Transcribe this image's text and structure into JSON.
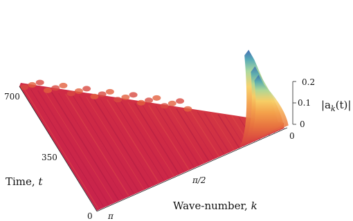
{
  "chart_data": {
    "type": "surface",
    "title": "",
    "xlabel": "Wave-number, ",
    "xlabel_symbol": "k",
    "ylabel": "Time, ",
    "ylabel_symbol": "t",
    "zlabel_prefix": "|a",
    "zlabel_sub": "k",
    "zlabel_suffix": "(t)|",
    "x_ticks": [
      "π",
      "π/2",
      "0"
    ],
    "y_ticks": [
      "0",
      "350",
      "700"
    ],
    "z_ticks": [
      "0",
      "0.1",
      "0.2"
    ],
    "xlim": [
      0,
      3.14159
    ],
    "ylim": [
      0,
      700
    ],
    "zlim": [
      0,
      0.2
    ],
    "colormap": [
      "#bf1f4a",
      "#d53b3f",
      "#e66b3d",
      "#f29a4a",
      "#f6c65a",
      "#dce67a",
      "#8fd0a0",
      "#4aa7b3",
      "#3a6fb0"
    ],
    "peaks": [
      {
        "k": 0.42,
        "t": 690,
        "amplitude": 0.2
      },
      {
        "k": 0.36,
        "t": 610,
        "amplitude": 0.16
      },
      {
        "k": 0.3,
        "t": 700,
        "amplitude": 0.13
      }
    ]
  }
}
